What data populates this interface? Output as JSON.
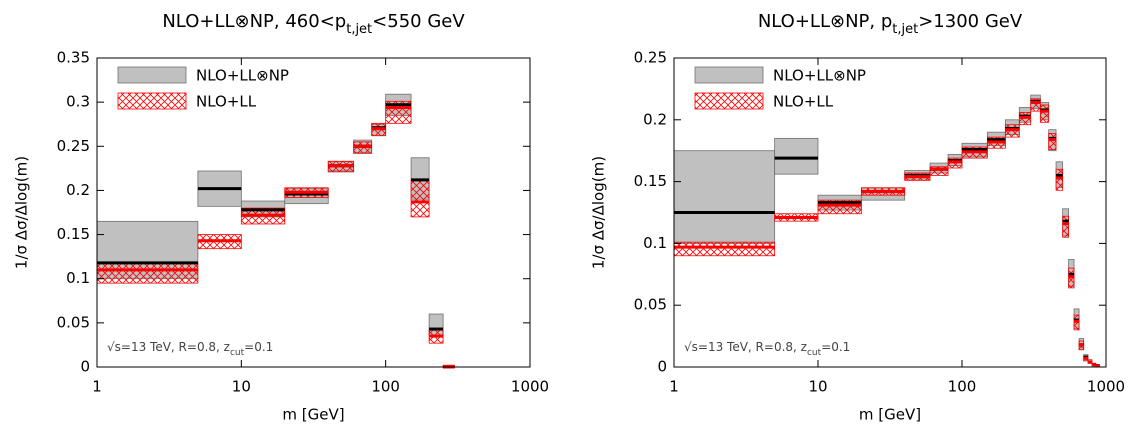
{
  "chart_data": [
    {
      "type": "histogram",
      "title": {
        "text": "NLO+LL⊗NP, 460<p",
        "sub": "t,jet",
        "after": "<550 GeV"
      },
      "xlabel": "m [GeV]",
      "ylabel": "1/σ Δσ/Δlog(m)",
      "annotation": {
        "text": "√s=13 TeV, R=0.8, z",
        "sub": "cut",
        "after": "=0.1"
      },
      "xscale": "log",
      "xlim": [
        1,
        1000
      ],
      "xticks": [
        1,
        10,
        100,
        1000
      ],
      "ylim": [
        0,
        0.35
      ],
      "yticks": [
        0,
        0.05,
        0.1,
        0.15,
        0.2,
        0.25,
        0.3,
        0.35
      ],
      "legend": "upper left",
      "bins": [
        1,
        5,
        10,
        20,
        40,
        60,
        80,
        100,
        150,
        200,
        250,
        300
      ],
      "series": [
        {
          "name": "NLO+LL⊗NP",
          "color": "#c0c0c0",
          "line_color": "#000000",
          "hatched": false,
          "values": [
            0.118,
            0.202,
            0.178,
            0.196,
            0.228,
            0.25,
            0.271,
            0.297,
            0.212,
            0.043,
            0
          ],
          "lower": [
            0.1,
            0.182,
            0.17,
            0.185,
            0.222,
            0.243,
            0.262,
            0.285,
            0.19,
            0.036,
            0
          ],
          "upper": [
            0.165,
            0.222,
            0.188,
            0.202,
            0.233,
            0.257,
            0.275,
            0.309,
            0.237,
            0.06,
            0
          ]
        },
        {
          "name": "NLO+LL",
          "color": "#ff0000",
          "line_color": "#ff0000",
          "hatched": true,
          "values": [
            0.11,
            0.143,
            0.172,
            0.198,
            0.228,
            0.25,
            0.27,
            0.294,
            0.187,
            0.035,
            0
          ],
          "lower": [
            0.095,
            0.134,
            0.162,
            0.192,
            0.221,
            0.242,
            0.262,
            0.276,
            0.17,
            0.027,
            0
          ],
          "upper": [
            0.118,
            0.15,
            0.18,
            0.203,
            0.233,
            0.255,
            0.276,
            0.301,
            0.212,
            0.042,
            0.002
          ]
        }
      ]
    },
    {
      "type": "histogram",
      "title": {
        "text": "NLO+LL⊗NP, p",
        "sub": "t,jet",
        "after": ">1300 GeV"
      },
      "xlabel": "m [GeV]",
      "ylabel": "1/σ Δσ/Δlog(m)",
      "annotation": {
        "text": "√s=13 TeV, R=0.8, z",
        "sub": "cut",
        "after": "=0.1"
      },
      "xscale": "log",
      "xlim": [
        1,
        1000
      ],
      "xticks": [
        1,
        10,
        100,
        1000
      ],
      "ylim": [
        0,
        0.25
      ],
      "yticks": [
        0,
        0.05,
        0.1,
        0.15,
        0.2,
        0.25
      ],
      "legend": "upper left",
      "bins": [
        1,
        5,
        10,
        20,
        40,
        60,
        80,
        100,
        150,
        200,
        250,
        300,
        350,
        400,
        450,
        500,
        550,
        600,
        650,
        700,
        750,
        800,
        850,
        900
      ],
      "series": [
        {
          "name": "NLO+LL⊗NP",
          "color": "#c0c0c0",
          "line_color": "#000000",
          "hatched": false,
          "values": [
            0.125,
            0.169,
            0.133,
            0.142,
            0.155,
            0.16,
            0.167,
            0.176,
            0.184,
            0.193,
            0.203,
            0.215,
            0.208,
            0.185,
            0.155,
            0.118,
            0.075,
            0.038,
            0.018,
            0.008,
            0.004,
            0.002,
            0.001
          ],
          "lower": [
            0.1,
            0.156,
            0.127,
            0.135,
            0.152,
            0.157,
            0.163,
            0.17,
            0.179,
            0.188,
            0.198,
            0.209,
            0.2,
            0.175,
            0.145,
            0.106,
            0.065,
            0.031,
            0.014,
            0.005,
            0.003,
            0.001,
            0
          ],
          "upper": [
            0.175,
            0.185,
            0.139,
            0.145,
            0.159,
            0.165,
            0.172,
            0.181,
            0.19,
            0.2,
            0.21,
            0.22,
            0.214,
            0.192,
            0.166,
            0.128,
            0.087,
            0.047,
            0.023,
            0.01,
            0.006,
            0.003,
            0.002
          ]
        },
        {
          "name": "NLO+LL",
          "color": "#ff0000",
          "line_color": "#ff0000",
          "hatched": true,
          "values": [
            0.097,
            0.121,
            0.131,
            0.142,
            0.154,
            0.16,
            0.166,
            0.174,
            0.182,
            0.192,
            0.202,
            0.214,
            0.207,
            0.184,
            0.153,
            0.116,
            0.073,
            0.037,
            0.018,
            0.007,
            0.004,
            0.002,
            0.001
          ],
          "lower": [
            0.09,
            0.118,
            0.124,
            0.139,
            0.151,
            0.155,
            0.161,
            0.169,
            0.177,
            0.186,
            0.196,
            0.207,
            0.198,
            0.176,
            0.143,
            0.105,
            0.064,
            0.03,
            0.014,
            0.005,
            0.003,
            0.001,
            0
          ],
          "upper": [
            0.101,
            0.124,
            0.135,
            0.145,
            0.157,
            0.162,
            0.169,
            0.178,
            0.186,
            0.196,
            0.206,
            0.217,
            0.212,
            0.189,
            0.16,
            0.122,
            0.08,
            0.042,
            0.021,
            0.009,
            0.005,
            0.003,
            0.002
          ]
        }
      ]
    }
  ]
}
